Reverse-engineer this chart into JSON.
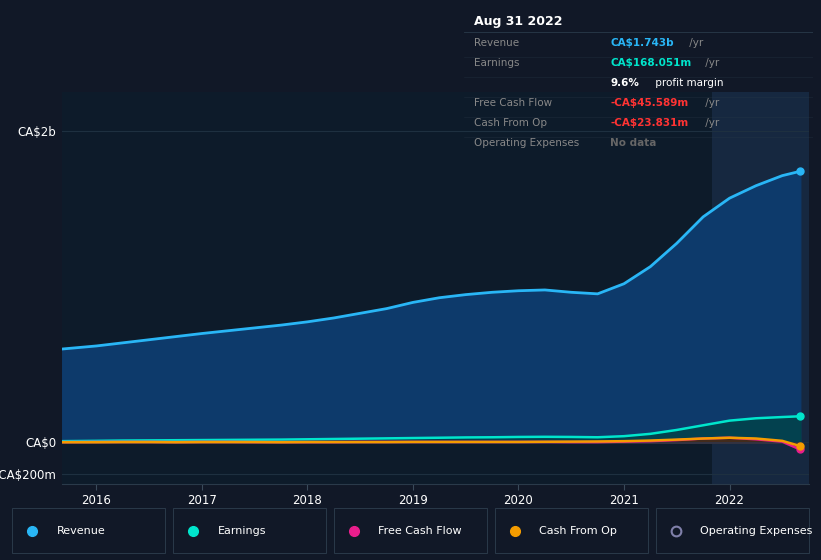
{
  "background_color": "#111827",
  "plot_bg_color": "#0d1b2a",
  "highlight_band_color": "#162840",
  "years": [
    2015.67,
    2016.0,
    2016.25,
    2016.5,
    2016.75,
    2017.0,
    2017.25,
    2017.5,
    2017.75,
    2018.0,
    2018.25,
    2018.5,
    2018.75,
    2019.0,
    2019.25,
    2019.5,
    2019.75,
    2020.0,
    2020.25,
    2020.5,
    2020.75,
    2021.0,
    2021.25,
    2021.5,
    2021.75,
    2022.0,
    2022.25,
    2022.5,
    2022.67
  ],
  "revenue": [
    600,
    620,
    640,
    660,
    680,
    700,
    718,
    736,
    754,
    775,
    800,
    830,
    860,
    900,
    930,
    950,
    965,
    975,
    980,
    965,
    955,
    1020,
    1130,
    1280,
    1450,
    1570,
    1650,
    1715,
    1743
  ],
  "earnings": [
    8,
    10,
    12,
    13,
    14,
    15,
    16,
    17,
    18,
    20,
    22,
    24,
    26,
    28,
    30,
    32,
    33,
    35,
    36,
    35,
    33,
    40,
    55,
    80,
    110,
    140,
    155,
    163,
    168
  ],
  "free_cash_flow": [
    2,
    3,
    3,
    3,
    2,
    3,
    3,
    2,
    2,
    2,
    2,
    3,
    3,
    3,
    3,
    3,
    3,
    3,
    3,
    2,
    2,
    5,
    8,
    15,
    25,
    30,
    20,
    5,
    -45.6
  ],
  "cash_from_op": [
    1,
    1,
    2,
    2,
    1,
    2,
    2,
    2,
    1,
    2,
    2,
    2,
    2,
    3,
    3,
    3,
    3,
    3,
    4,
    5,
    6,
    8,
    12,
    18,
    25,
    30,
    25,
    10,
    -23.8
  ],
  "revenue_color": "#29b6f6",
  "earnings_color": "#00e5cc",
  "free_cash_flow_color": "#e91e8c",
  "cash_from_op_color": "#f59c00",
  "op_expenses_color": "#8080aa",
  "revenue_fill_color": "#0d3a6b",
  "earnings_fill_color": "#004444",
  "ytick_labels": [
    "CA$2b",
    "CA$0",
    "-CA$200m"
  ],
  "ytick_values": [
    2000,
    0,
    -200
  ],
  "highlight_start": 2021.83,
  "highlight_end": 2022.75,
  "info_box": {
    "date": "Aug 31 2022",
    "rows": [
      {
        "label": "Revenue",
        "value": "CA$1.743b",
        "value_color": "#29b6f6",
        "suffix": " /yr"
      },
      {
        "label": "Earnings",
        "value": "CA$168.051m",
        "value_color": "#00e5cc",
        "suffix": " /yr"
      },
      {
        "label": "",
        "value": "9.6% profit margin",
        "value_color": "white",
        "suffix": "",
        "bold_prefix": "9.6%"
      },
      {
        "label": "Free Cash Flow",
        "value": "-CA$45.589m",
        "value_color": "#ff3333",
        "suffix": " /yr"
      },
      {
        "label": "Cash From Op",
        "value": "-CA$23.831m",
        "value_color": "#ff3333",
        "suffix": " /yr"
      },
      {
        "label": "Operating Expenses",
        "value": "No data",
        "value_color": "#666666",
        "suffix": ""
      }
    ],
    "box_bg": "#080c10",
    "box_border": "#2a3a4a",
    "label_color": "#888888",
    "title_color": "white"
  },
  "legend_items": [
    {
      "label": "Revenue",
      "color": "#29b6f6",
      "marker": "circle",
      "filled": true
    },
    {
      "label": "Earnings",
      "color": "#00e5cc",
      "marker": "circle",
      "filled": true
    },
    {
      "label": "Free Cash Flow",
      "color": "#e91e8c",
      "marker": "circle",
      "filled": true
    },
    {
      "label": "Cash From Op",
      "color": "#f59c00",
      "marker": "circle",
      "filled": true
    },
    {
      "label": "Operating Expenses",
      "color": "#8080aa",
      "marker": "circle",
      "filled": false
    }
  ],
  "xtick_years": [
    2016,
    2017,
    2018,
    2019,
    2020,
    2021,
    2022
  ],
  "xlim": [
    2015.67,
    2022.75
  ],
  "ylim": [
    -270,
    2250
  ]
}
